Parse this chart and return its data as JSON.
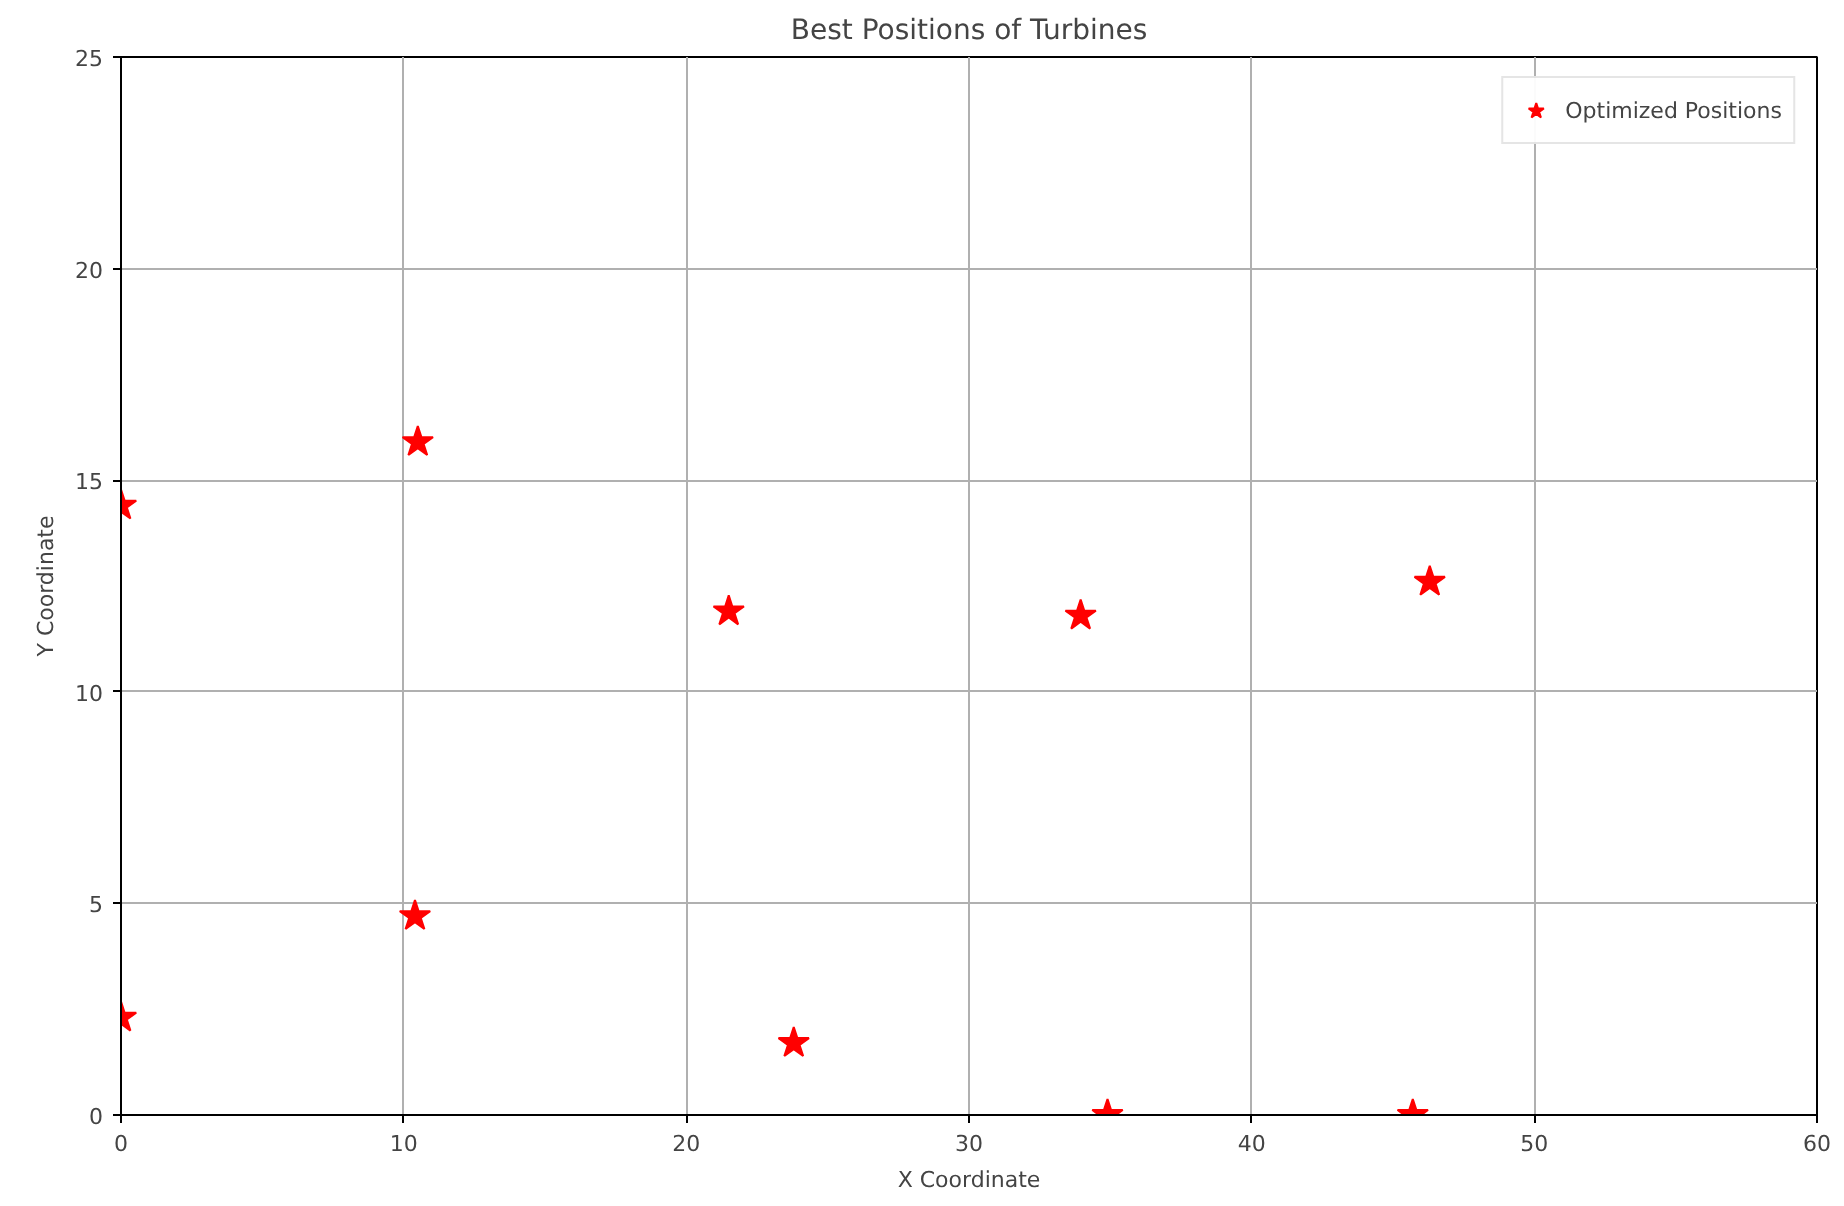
{
  "chart_data": {
    "type": "scatter",
    "title": "Best Positions of Turbines",
    "xlabel": "X Coordinate",
    "ylabel": "Y Coordinate",
    "series": [
      {
        "name": "Optimized Positions",
        "color": "#ff0000",
        "x": [
          0,
          10.5,
          21.5,
          33.95,
          46.3,
          10.4,
          0,
          23.8,
          34.9,
          45.7
        ],
        "values": [
          14.4,
          15.9,
          11.9,
          11.8,
          12.6,
          4.7,
          2.3,
          1.7,
          0,
          0
        ]
      }
    ],
    "marker": "star",
    "xlim": [
      0,
      60
    ],
    "ylim": [
      0,
      25
    ],
    "xticks": [
      0,
      10,
      20,
      30,
      40,
      50,
      60
    ],
    "yticks": [
      0,
      5,
      10,
      15,
      20,
      25
    ],
    "grid": true,
    "legend": "top right"
  }
}
